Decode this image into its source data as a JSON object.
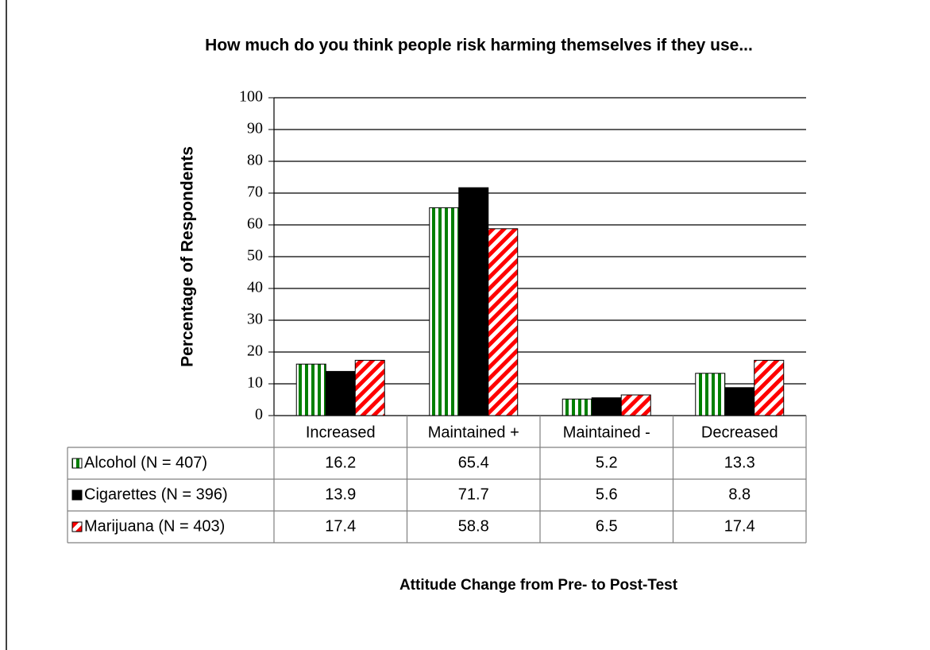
{
  "chart_data": {
    "type": "bar",
    "title": "How much do you think people risk harming themselves if they use...",
    "y_label": "Percentage of Respondents",
    "x_label": "Attitude Change from Pre- to Post-Test",
    "categories": [
      "Increased",
      "Maintained +",
      "Maintained -",
      "Decreased"
    ],
    "series": [
      {
        "name": "Alcohol  (N = 407)",
        "color": "#008000",
        "pattern": "vertical",
        "values": [
          16.2,
          65.4,
          5.2,
          13.3
        ]
      },
      {
        "name": "Cigarettes (N = 396)",
        "color": "#000000",
        "pattern": "solid",
        "values": [
          13.9,
          71.7,
          5.6,
          8.8
        ]
      },
      {
        "name": "Marijuana (N = 403)",
        "color": "#ff0000",
        "pattern": "diagonal",
        "values": [
          17.4,
          58.8,
          6.5,
          17.4
        ]
      }
    ],
    "ylim": [
      0,
      100
    ],
    "yticks": [
      0,
      10,
      20,
      30,
      40,
      50,
      60,
      70,
      80,
      90,
      100
    ],
    "grid": true
  }
}
